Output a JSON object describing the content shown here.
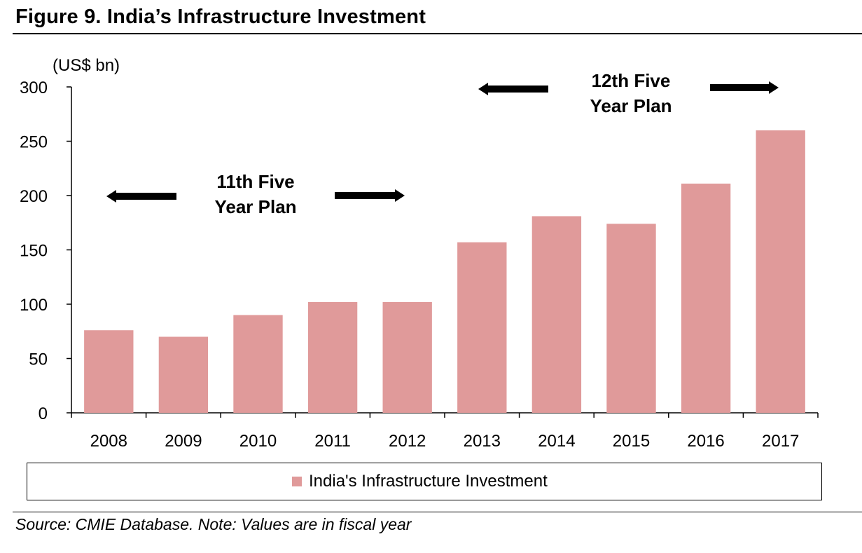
{
  "figure": {
    "title": "Figure 9. India’s Infrastructure Investment",
    "source_note": "Source: CMIE Database. Note: Values are in fiscal year"
  },
  "chart_data": {
    "type": "bar",
    "unit_label": "(US$ bn)",
    "categories": [
      "2008",
      "2009",
      "2010",
      "2011",
      "2012",
      "2013",
      "2014",
      "2015",
      "2016",
      "2017"
    ],
    "series": [
      {
        "name": "India's Infrastructure Investment",
        "color": "#e09a9a",
        "values": [
          76,
          70,
          90,
          102,
          102,
          157,
          181,
          174,
          211,
          260
        ]
      }
    ],
    "ylim": [
      0,
      300
    ],
    "yticks": [
      "0",
      "50",
      "100",
      "150",
      "200",
      "250",
      "300"
    ],
    "grid": false,
    "legend": "bottom",
    "annotations": [
      {
        "lines": [
          "11th Five",
          "Year Plan"
        ],
        "span": [
          "2008",
          "2012"
        ]
      },
      {
        "lines": [
          "12th Five",
          "Year Plan"
        ],
        "span": [
          "2013",
          "2017"
        ]
      }
    ]
  }
}
